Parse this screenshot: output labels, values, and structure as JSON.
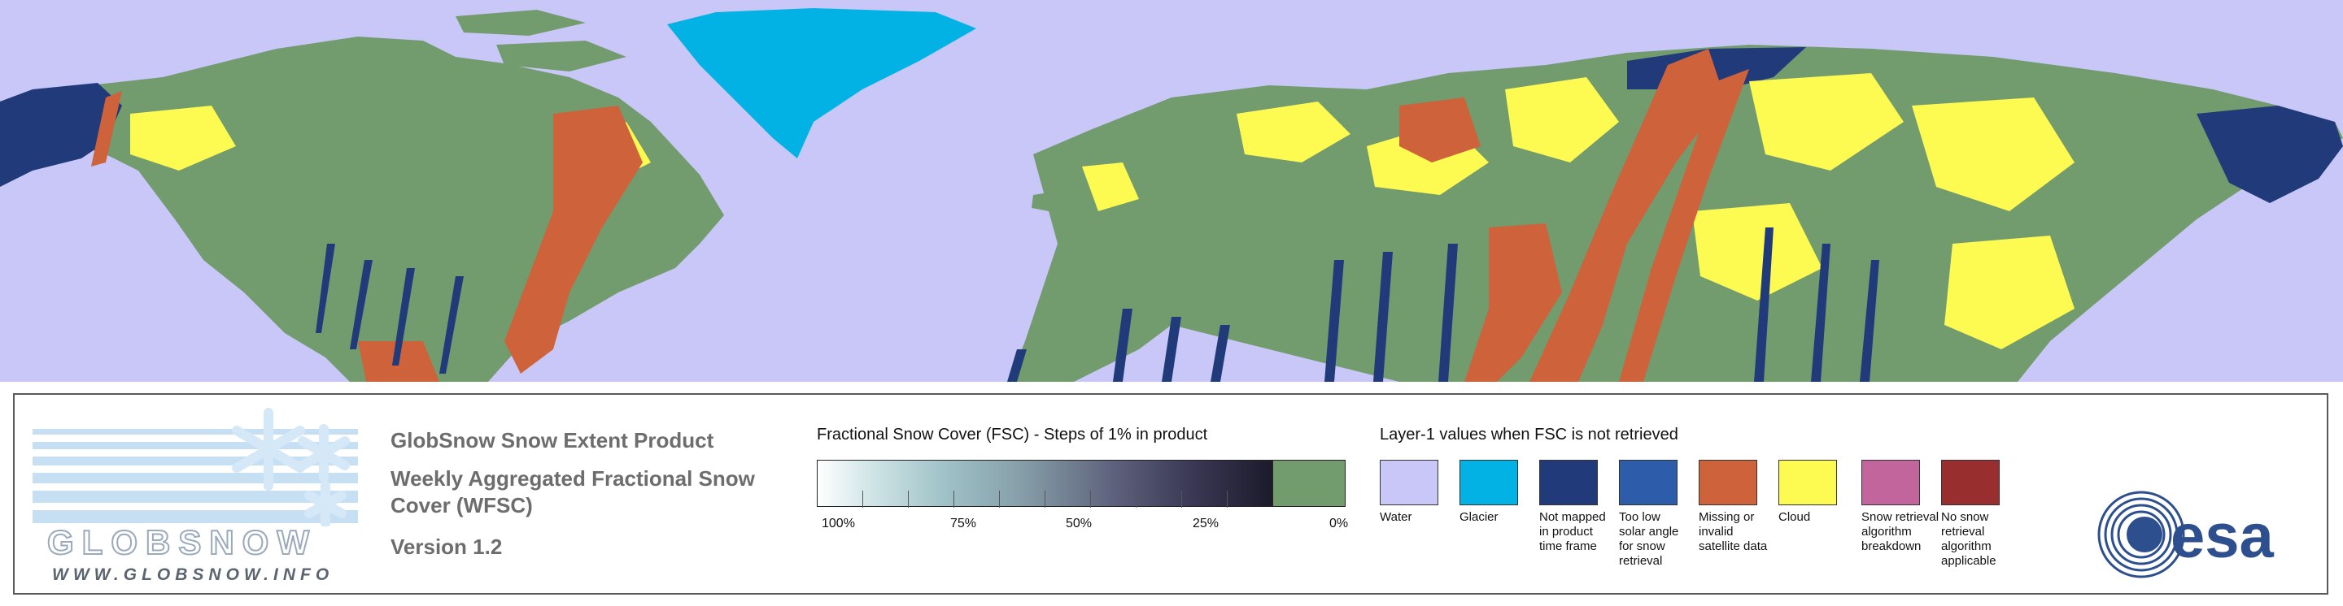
{
  "map": {
    "colors": {
      "water": "#c9c7f8",
      "glacier": "#02b2e5",
      "land_no_snow": "#729b6e",
      "not_mapped": "#213a7a",
      "low_sun": "#2c5caa",
      "missing": "#ce633b",
      "cloud": "#fdfb51"
    }
  },
  "logo": {
    "word": "GLOBSNOW",
    "url": "WWW.GLOBSNOW.INFO",
    "colors": {
      "stripes": "#c6dff3",
      "flake": "#d4e8f7"
    }
  },
  "product": {
    "title": "GlobSnow Snow Extent Product",
    "subtitle": "Weekly Aggregated Fractional Snow Cover (WFSC)",
    "version": "Version 1.2"
  },
  "fsc_legend": {
    "title": "Fractional Snow Cover (FSC) - Steps of 1% in product",
    "ticks": [
      "100%",
      "75%",
      "50%",
      "25%",
      "0%"
    ],
    "zero_color": "#729b6e"
  },
  "layer1_legend": {
    "title": "Layer-1 values when FSC is not retrieved",
    "items": [
      {
        "label": "Water",
        "color": "#c9c7f8"
      },
      {
        "label": "Glacier",
        "color": "#02b2e5"
      },
      {
        "label": "Not mapped in product time frame",
        "color": "#213a7a"
      },
      {
        "label": "Too low solar angle for snow retrieval",
        "color": "#2c5caa"
      },
      {
        "label": "Missing or invalid satellite data",
        "color": "#ce633b"
      },
      {
        "label": "Cloud",
        "color": "#fdfb51"
      },
      {
        "label": "Snow retrieval algorithm breakdown",
        "color": "#c2659c"
      },
      {
        "label": "No snow retrieval algorithm applicable",
        "color": "#982e2d"
      }
    ]
  },
  "esa_logo": {
    "text": "esa",
    "color": "#2e4f8e"
  }
}
